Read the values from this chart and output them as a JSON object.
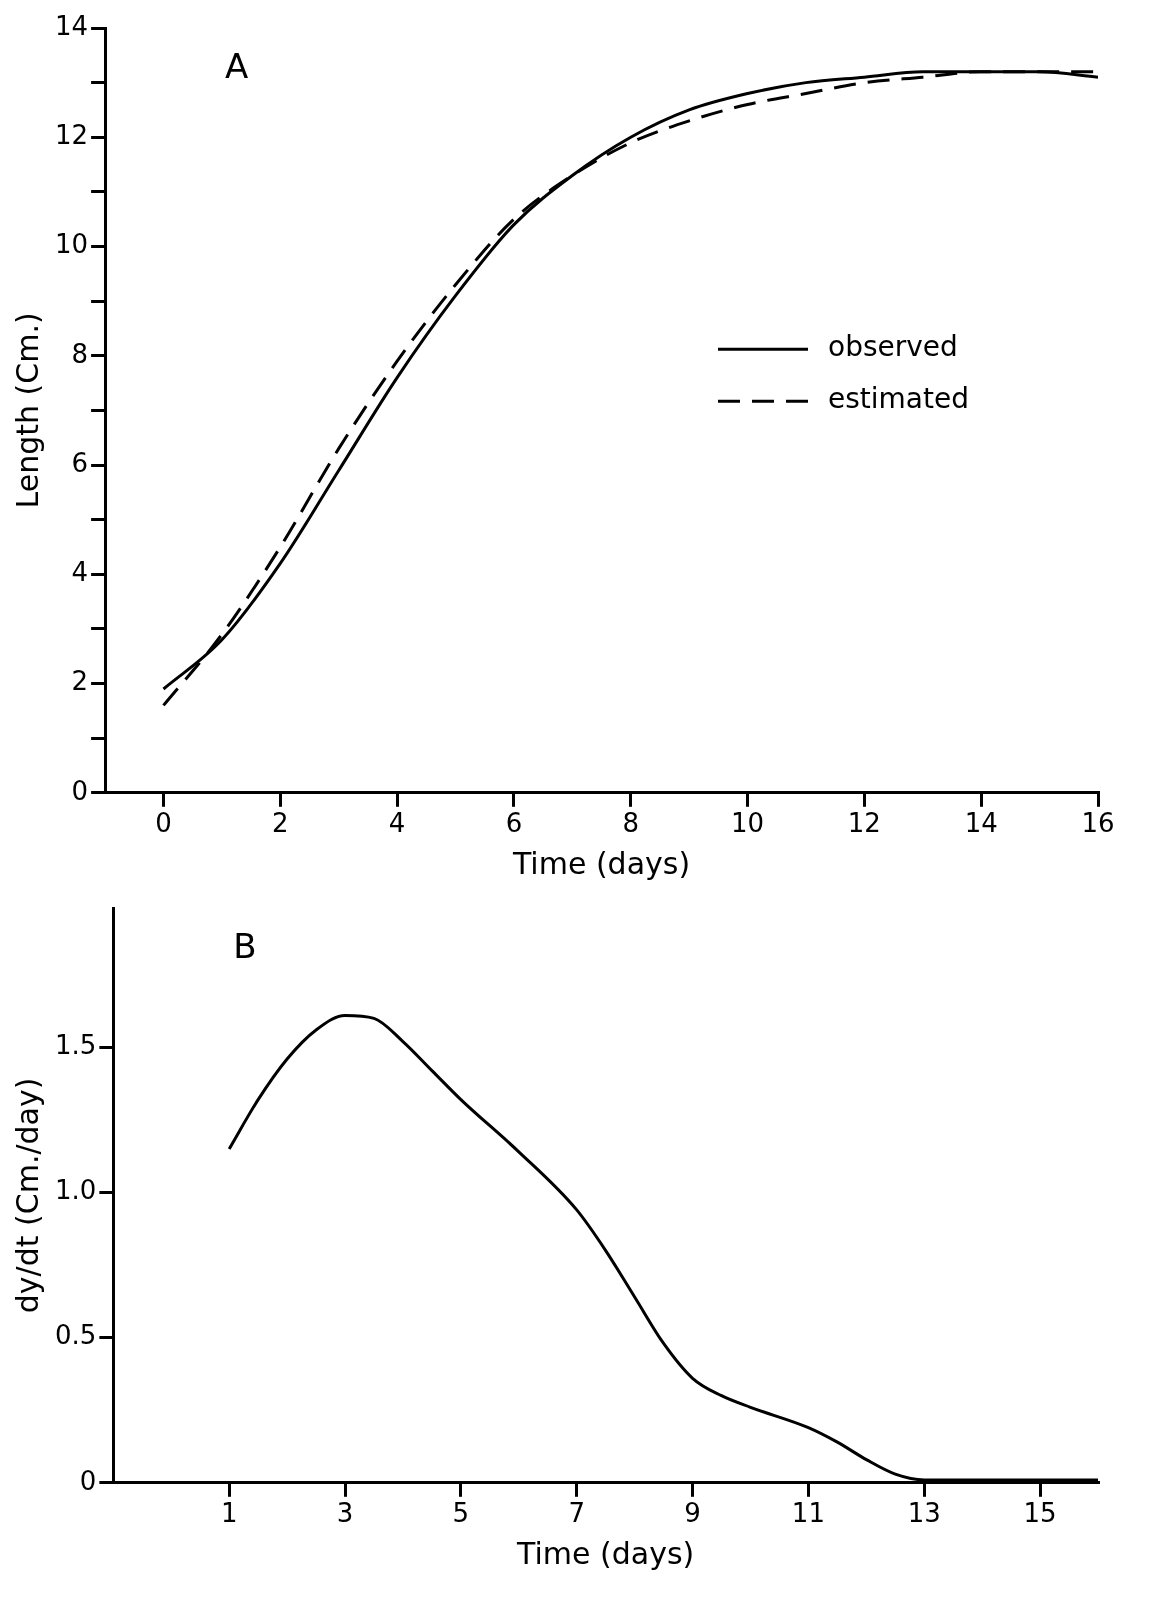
{
  "chart_data": [
    {
      "type": "line",
      "annotations": [
        "A"
      ],
      "xlabel": "Time (days)",
      "ylabel": "Length (Cm.)",
      "xlim": [
        -1,
        16
      ],
      "xticks": [
        0,
        2,
        4,
        6,
        8,
        10,
        12,
        14,
        16
      ],
      "ylim": [
        0,
        14
      ],
      "yticks": [
        0,
        {
          "value": 1,
          "label": null
        },
        2,
        {
          "value": 3,
          "label": null
        },
        4,
        {
          "value": 5,
          "label": null
        },
        6,
        {
          "value": 7,
          "label": null
        },
        8,
        {
          "value": 9,
          "label": null
        },
        10,
        {
          "value": 11,
          "label": null
        },
        12,
        {
          "value": 13,
          "label": null
        },
        14
      ],
      "grid": false,
      "legend": "right",
      "marker": "none",
      "x": [
        0,
        1,
        2,
        3,
        4,
        5,
        6,
        7,
        8,
        9,
        10,
        11,
        12,
        13,
        14,
        15,
        16
      ],
      "series": [
        {
          "name": "observed",
          "color": "#000000",
          "line_style": "solid",
          "values": [
            1.9,
            2.8,
            4.2,
            5.9,
            7.6,
            9.1,
            10.4,
            11.3,
            12.0,
            12.5,
            12.8,
            13.0,
            13.1,
            13.2,
            13.2,
            13.2,
            13.1
          ]
        },
        {
          "name": "estimated",
          "color": "#000000",
          "line_style": "dashed",
          "values": [
            1.6,
            2.9,
            4.5,
            6.3,
            7.9,
            9.3,
            10.5,
            11.3,
            11.9,
            12.3,
            12.6,
            12.8,
            13.0,
            13.1,
            13.2,
            13.2,
            13.2
          ]
        }
      ]
    },
    {
      "type": "line",
      "annotations": [
        "B"
      ],
      "xlabel": "Time (days)",
      "ylabel": "dy/dt (Cm./day)",
      "xlim": [
        -1,
        16
      ],
      "xticks": [
        1,
        3,
        5,
        7,
        9,
        11,
        13,
        15
      ],
      "ylim": [
        0,
        1.98
      ],
      "yticks": [
        0,
        {
          "value": 0.5,
          "label": "0.5"
        },
        {
          "value": 1,
          "label": "1.0"
        },
        1.5
      ],
      "grid": false,
      "legend": false,
      "marker": "none",
      "x": [
        1,
        1.5,
        2,
        2.5,
        3,
        3.5,
        4,
        4.5,
        5,
        6,
        7,
        7.5,
        8,
        8.5,
        9,
        9.5,
        10,
        11,
        11.5,
        12,
        12.5,
        13,
        14,
        16
      ],
      "series": [
        {
          "color": "#000000",
          "line_style": "solid",
          "values": [
            1.15,
            1.32,
            1.46,
            1.56,
            1.61,
            1.6,
            1.52,
            1.42,
            1.32,
            1.14,
            0.94,
            0.8,
            0.64,
            0.48,
            0.36,
            0.3,
            0.26,
            0.19,
            0.14,
            0.08,
            0.03,
            0.01,
            0.01,
            0.01
          ]
        }
      ]
    }
  ]
}
